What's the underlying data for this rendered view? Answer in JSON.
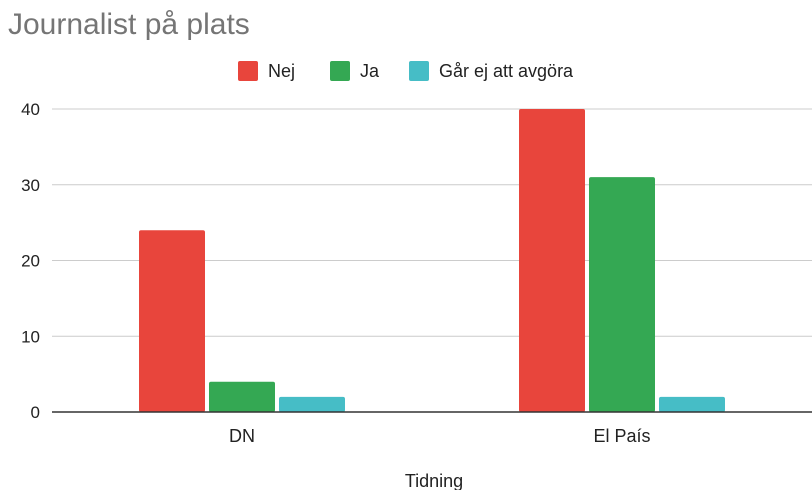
{
  "chart_data": {
    "type": "bar",
    "title": "Journalist på plats",
    "xlabel": "Tidning",
    "ylabel": "",
    "categories": [
      "DN",
      "El País"
    ],
    "series": [
      {
        "name": "Nej",
        "values": [
          24,
          40
        ],
        "color": "#e8453c"
      },
      {
        "name": "Ja",
        "values": [
          4,
          31
        ],
        "color": "#34a853"
      },
      {
        "name": "Går ej att avgöra",
        "values": [
          2,
          2
        ],
        "color": "#46bdc6"
      }
    ],
    "ylim": [
      0,
      40
    ],
    "yticks": [
      0,
      10,
      20,
      30,
      40
    ],
    "grid": true,
    "legend_position": "top"
  }
}
